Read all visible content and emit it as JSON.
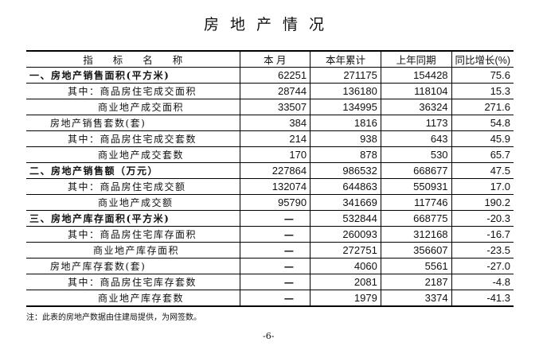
{
  "title": "房地产情况",
  "table": {
    "headers": [
      "指　　标　　名　　称",
      "本 月",
      "本年累计",
      "上年同期",
      "同比增长(%)"
    ],
    "rows": [
      {
        "name": "一、房地产销售面积(平方米)",
        "level": "l0",
        "month": "62251",
        "ytd": "271175",
        "last_year": "154428",
        "growth": "75.6"
      },
      {
        "name": "其中：商品房住宅成交面积",
        "level": "l1",
        "month": "28744",
        "ytd": "136180",
        "last_year": "118104",
        "growth": "15.3"
      },
      {
        "name": "商业地产成交面积",
        "level": "l2",
        "month": "33507",
        "ytd": "134995",
        "last_year": "36324",
        "growth": "271.6"
      },
      {
        "name": "房地产销售套数(套)",
        "level": "l3",
        "month": "384",
        "ytd": "1816",
        "last_year": "1173",
        "growth": "54.8"
      },
      {
        "name": "其中：商品房住宅成交套数",
        "level": "l1",
        "month": "214",
        "ytd": "938",
        "last_year": "643",
        "growth": "45.9"
      },
      {
        "name": "商业地产成交套数",
        "level": "l2",
        "month": "170",
        "ytd": "878",
        "last_year": "530",
        "growth": "65.7"
      },
      {
        "name": "二、房地产销售额（万元）",
        "level": "l0",
        "month": "227864",
        "ytd": "986532",
        "last_year": "668677",
        "growth": "47.5"
      },
      {
        "name": "其中：商品房住宅成交额",
        "level": "l1",
        "month": "132074",
        "ytd": "644863",
        "last_year": "550931",
        "growth": "17.0"
      },
      {
        "name": "商业地产成交额",
        "level": "l2",
        "month": "95790",
        "ytd": "341669",
        "last_year": "117746",
        "growth": "190.2"
      },
      {
        "name": "三、房地产库存面积(平方米)",
        "level": "l0",
        "month": "—",
        "ytd": "532844",
        "last_year": "668775",
        "growth": "-20.3"
      },
      {
        "name": "其中：商品房住宅库存面积",
        "level": "l1",
        "month": "—",
        "ytd": "260093",
        "last_year": "312168",
        "growth": "-16.7"
      },
      {
        "name": "商业地产库存面积",
        "level": "l4",
        "month": "—",
        "ytd": "272751",
        "last_year": "356607",
        "growth": "-23.5"
      },
      {
        "name": "房地产库存套数(套)",
        "level": "l3",
        "month": "—",
        "ytd": "4060",
        "last_year": "5561",
        "growth": "-27.0"
      },
      {
        "name": "其中：商品房住宅库存套数",
        "level": "l1",
        "month": "—",
        "ytd": "2081",
        "last_year": "2187",
        "growth": "-4.8"
      },
      {
        "name": "商业地产库存套数",
        "level": "l2",
        "month": "—",
        "ytd": "1979",
        "last_year": "3374",
        "growth": "-41.3"
      }
    ]
  },
  "note": "注：此表的房地产数据由住建局提供，为网签数。",
  "page_number": "-6-"
}
